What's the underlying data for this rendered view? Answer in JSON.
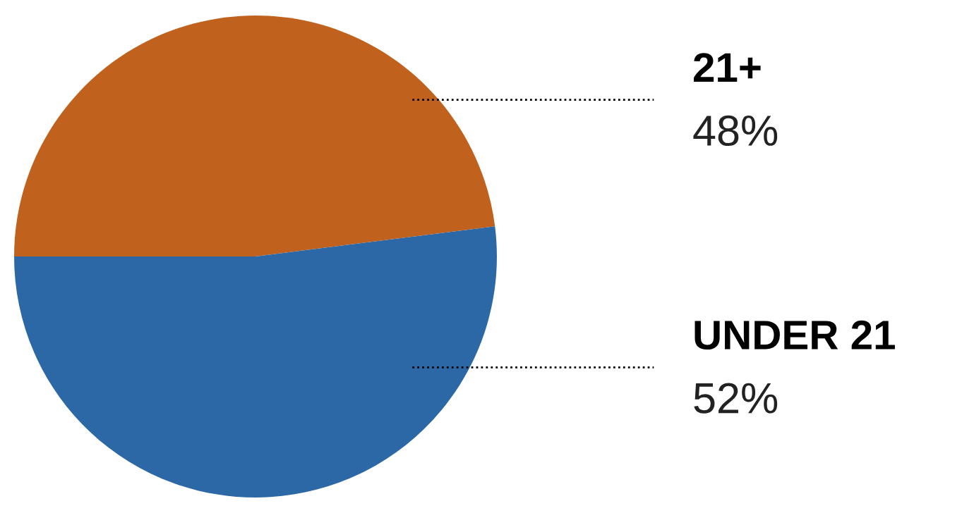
{
  "chart_data": {
    "type": "pie",
    "categories": [
      "21+",
      "UNDER 21"
    ],
    "values": [
      48,
      52
    ],
    "colors": [
      "#c0621d",
      "#2c68a6"
    ],
    "value_labels": [
      "48%",
      "52%"
    ]
  }
}
